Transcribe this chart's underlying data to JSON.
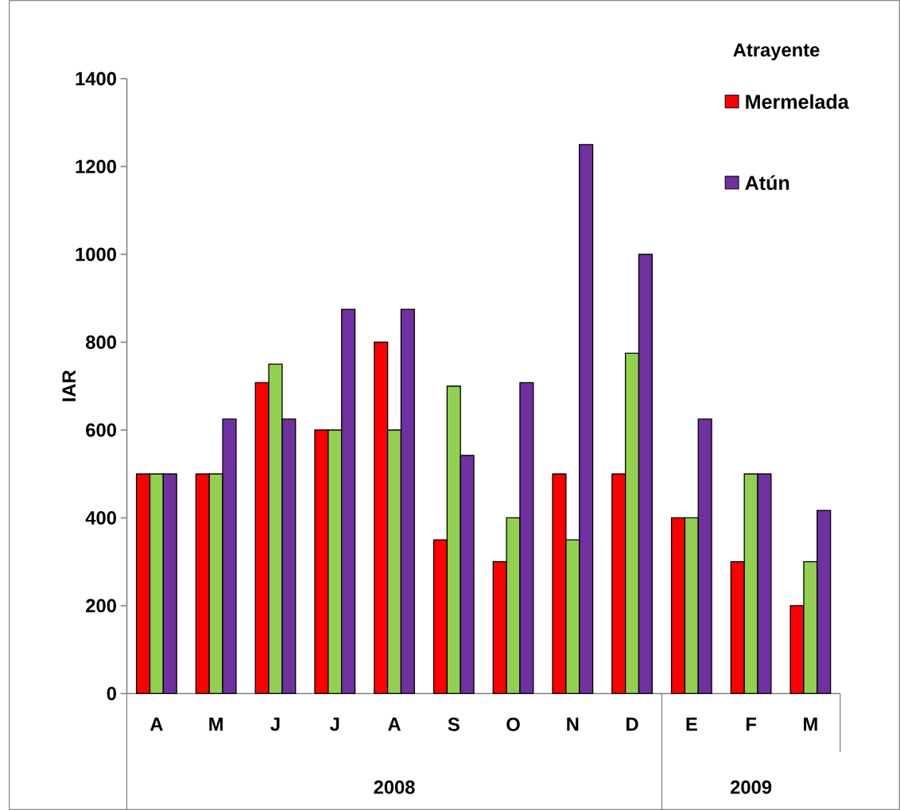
{
  "chart_data": {
    "type": "bar",
    "ylabel": "IAR",
    "legend_title": "Atrayente",
    "legend": "top right",
    "grid": false,
    "categories": [
      "A",
      "M",
      "J",
      "J",
      "A",
      "S",
      "O",
      "N",
      "D",
      "E",
      "F",
      "M"
    ],
    "annotations": [
      "2008",
      "2009"
    ],
    "ylim": [
      0,
      1400
    ],
    "yticks": [
      0,
      200,
      400,
      600,
      800,
      1000,
      1200,
      1400
    ],
    "series": [
      {
        "name": "Mermelada",
        "color": "#ff0000",
        "values": [
          500,
          500,
          708,
          600,
          800,
          350,
          300,
          500,
          500,
          400,
          300,
          200
        ]
      },
      {
        "color": "#92d050",
        "values": [
          500,
          500,
          750,
          600,
          600,
          700,
          400,
          350,
          775,
          400,
          500,
          300
        ]
      },
      {
        "name": "Atún",
        "color": "#7030a0",
        "values": [
          500,
          625,
          625,
          875,
          875,
          542,
          708,
          1250,
          1000,
          625,
          500,
          417
        ]
      }
    ]
  }
}
